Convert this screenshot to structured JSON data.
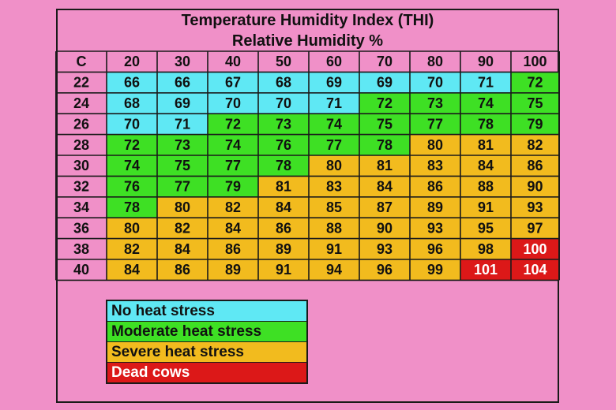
{
  "title": "Temperature Humidity Index (THI)",
  "subtitle": "Relative Humidity %",
  "colors": {
    "no_stress": "#5fe8f4",
    "moderate": "#3ee024",
    "severe": "#f2bb1e",
    "dead": "#dc1818",
    "background": "#f090c8",
    "grid": "#1a1a1a"
  },
  "legend": [
    {
      "label": "No heat stress",
      "color": "#5fe8f4",
      "text_color": "#111111"
    },
    {
      "label": "Moderate heat stress",
      "color": "#3ee024",
      "text_color": "#111111"
    },
    {
      "label": "Severe heat stress",
      "color": "#f2bb1e",
      "text_color": "#111111"
    },
    {
      "label": "Dead cows",
      "color": "#dc1818",
      "text_color": "#ffffff"
    }
  ],
  "chart_data": {
    "type": "table",
    "title": "Temperature Humidity Index (THI)",
    "xlabel": "Relative Humidity %",
    "corner_label": "C",
    "columns": [
      20,
      30,
      40,
      50,
      60,
      70,
      80,
      90,
      100
    ],
    "rows": [
      22,
      24,
      26,
      28,
      30,
      32,
      34,
      36,
      38,
      40
    ],
    "values": [
      [
        66,
        66,
        67,
        68,
        69,
        69,
        70,
        71,
        72
      ],
      [
        68,
        69,
        70,
        70,
        71,
        72,
        73,
        74,
        75
      ],
      [
        70,
        71,
        72,
        73,
        74,
        75,
        77,
        78,
        79
      ],
      [
        72,
        73,
        74,
        76,
        77,
        78,
        80,
        81,
        82
      ],
      [
        74,
        75,
        77,
        78,
        80,
        81,
        83,
        84,
        86
      ],
      [
        76,
        77,
        79,
        81,
        83,
        84,
        86,
        88,
        90
      ],
      [
        78,
        80,
        82,
        84,
        85,
        87,
        89,
        91,
        93
      ],
      [
        80,
        82,
        84,
        86,
        88,
        90,
        93,
        95,
        97
      ],
      [
        82,
        84,
        86,
        89,
        91,
        93,
        96,
        98,
        100
      ],
      [
        84,
        86,
        89,
        91,
        94,
        96,
        99,
        101,
        104
      ]
    ],
    "categories_by_cell": [
      [
        "none",
        "none",
        "none",
        "none",
        "none",
        "none",
        "none",
        "none",
        "moderate"
      ],
      [
        "none",
        "none",
        "none",
        "none",
        "none",
        "moderate",
        "moderate",
        "moderate",
        "moderate"
      ],
      [
        "none",
        "none",
        "moderate",
        "moderate",
        "moderate",
        "moderate",
        "moderate",
        "moderate",
        "moderate"
      ],
      [
        "moderate",
        "moderate",
        "moderate",
        "moderate",
        "moderate",
        "moderate",
        "severe",
        "severe",
        "severe"
      ],
      [
        "moderate",
        "moderate",
        "moderate",
        "moderate",
        "severe",
        "severe",
        "severe",
        "severe",
        "severe"
      ],
      [
        "moderate",
        "moderate",
        "moderate",
        "severe",
        "severe",
        "severe",
        "severe",
        "severe",
        "severe"
      ],
      [
        "moderate",
        "severe",
        "severe",
        "severe",
        "severe",
        "severe",
        "severe",
        "severe",
        "severe"
      ],
      [
        "severe",
        "severe",
        "severe",
        "severe",
        "severe",
        "severe",
        "severe",
        "severe",
        "severe"
      ],
      [
        "severe",
        "severe",
        "severe",
        "severe",
        "severe",
        "severe",
        "severe",
        "severe",
        "dead"
      ],
      [
        "severe",
        "severe",
        "severe",
        "severe",
        "severe",
        "severe",
        "severe",
        "dead",
        "dead"
      ]
    ]
  }
}
